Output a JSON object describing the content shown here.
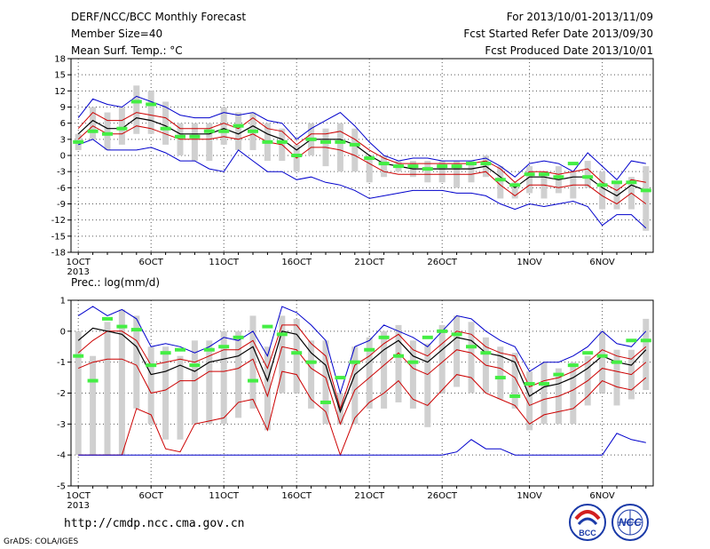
{
  "header": {
    "title": "DERF/NCC/BCC Monthly Forecast",
    "member_size": "Member Size=40",
    "variable": "Mean Surf. Temp.: °C",
    "forecast_period": "For 2013/10/01-2013/11/09",
    "fcst_started": "Fcst Started Refer Date 2013/09/30",
    "fcst_produced": "Fcst Produced Date 2013/10/01"
  },
  "footer": {
    "url": "http://cmdp.ncc.cma.gov.cn",
    "grads": "GrADS: COLA/IGES",
    "logo_bcc": "BCC",
    "logo_ncc": "NCC"
  },
  "colors": {
    "mean": "#000000",
    "spread": "#cc0000",
    "extremes": "#0000cc",
    "ensemble_range": "#d0d0d0",
    "median": "#44ee44",
    "grid": "#555555"
  },
  "chart_data": [
    {
      "type": "line",
      "title": "Mean Surf. Temp.: °C",
      "xlabel": "",
      "ylabel": "",
      "ylim": [
        -18,
        18
      ],
      "yticks": [
        -18,
        -15,
        -12,
        -9,
        -6,
        -3,
        0,
        3,
        6,
        9,
        12,
        15,
        18
      ],
      "xtick_labels": [
        "1OCT",
        "6OCT",
        "11OCT",
        "16OCT",
        "21OCT",
        "26OCT",
        "1NOV",
        "6NOV"
      ],
      "xtick_days": [
        1,
        6,
        11,
        16,
        21,
        26,
        32,
        37
      ],
      "year_label": "2013",
      "x_days": [
        1,
        2,
        3,
        4,
        5,
        6,
        7,
        8,
        9,
        10,
        11,
        12,
        13,
        14,
        15,
        16,
        17,
        18,
        19,
        20,
        21,
        22,
        23,
        24,
        25,
        26,
        27,
        28,
        29,
        30,
        31,
        32,
        33,
        34,
        35,
        36,
        37,
        38,
        39,
        40
      ],
      "grid": true,
      "series": [
        {
          "role": "max",
          "color": "#0000cc",
          "values": [
            7,
            10.5,
            9.5,
            9,
            11,
            10,
            9,
            7.5,
            7,
            7,
            8,
            7.5,
            8,
            6.5,
            6,
            3,
            5,
            6.5,
            8,
            5.5,
            2.5,
            0,
            -1,
            -0.5,
            -0.5,
            -1,
            -1,
            -1,
            -0.5,
            -2,
            -4,
            -1.5,
            -1,
            -1.5,
            -3,
            0.5,
            -2,
            -4.5,
            -1,
            -1.5
          ]
        },
        {
          "role": "upper",
          "color": "#cc0000",
          "values": [
            5,
            8,
            6.5,
            6.5,
            8,
            7.5,
            7,
            5,
            5,
            5,
            6,
            5,
            7,
            5,
            4.5,
            2,
            4,
            4,
            4.5,
            3,
            1,
            -0.5,
            -1.5,
            -1.5,
            -1.5,
            -1.5,
            -1.5,
            -1.5,
            -1,
            -2.5,
            -5,
            -3,
            -3,
            -3.5,
            -3,
            -2.5,
            -5,
            -6.5,
            -4.5,
            -5
          ]
        },
        {
          "role": "mean",
          "color": "#000000",
          "values": [
            4,
            6.5,
            5,
            5,
            7,
            6.5,
            5.5,
            4,
            4,
            4,
            5,
            4,
            5.5,
            4,
            3,
            1,
            3,
            3,
            3,
            2,
            0,
            -1.5,
            -2,
            -2.5,
            -2.5,
            -2.5,
            -2.5,
            -2.5,
            -2,
            -4,
            -6,
            -4,
            -4,
            -4.5,
            -4,
            -4,
            -6,
            -7.5,
            -5.5,
            -6.5
          ]
        },
        {
          "role": "lower",
          "color": "#cc0000",
          "values": [
            3,
            5.5,
            4,
            4,
            5.5,
            5,
            4,
            3,
            3,
            3,
            3.5,
            3,
            4,
            2.5,
            2,
            -0.5,
            1.5,
            1.5,
            1,
            0,
            -1.5,
            -3,
            -3.5,
            -3.5,
            -3.5,
            -3.5,
            -3.5,
            -3.5,
            -3,
            -5.5,
            -7.5,
            -5.5,
            -5.5,
            -6,
            -5.5,
            -5.5,
            -7.5,
            -9,
            -7,
            -9
          ]
        },
        {
          "role": "min",
          "color": "#0000cc",
          "values": [
            2,
            3,
            1,
            1,
            1,
            1.5,
            0.5,
            -1,
            -1,
            -2.5,
            -3,
            1,
            -1,
            -3,
            -3,
            -4.5,
            -4,
            -5,
            -5.5,
            -6.5,
            -8,
            -7.5,
            -7,
            -6.5,
            -6.5,
            -6.5,
            -7,
            -7,
            -7.5,
            -9,
            -10,
            -9,
            -9.5,
            -9,
            -8.5,
            -9.5,
            -13,
            -11,
            -11,
            -13.5
          ]
        }
      ],
      "ensemble_range": [
        [
          1,
          4
        ],
        [
          3,
          9
        ],
        [
          1,
          8
        ],
        [
          2,
          9
        ],
        [
          4,
          13
        ],
        [
          4,
          12
        ],
        [
          2,
          10
        ],
        [
          0,
          6
        ],
        [
          -1,
          6
        ],
        [
          -1,
          6
        ],
        [
          2,
          9
        ],
        [
          1,
          8
        ],
        [
          1,
          8
        ],
        [
          -1,
          6
        ],
        [
          -1,
          5
        ],
        [
          -3,
          2
        ],
        [
          0,
          6
        ],
        [
          -2,
          5
        ],
        [
          -3,
          6
        ],
        [
          -3,
          5
        ],
        [
          -5,
          0
        ],
        [
          -4,
          0
        ],
        [
          -3,
          -1
        ],
        [
          -4,
          -1
        ],
        [
          -5,
          -1
        ],
        [
          -5,
          -1
        ],
        [
          -6,
          -1
        ],
        [
          -5,
          -1
        ],
        [
          -4,
          0
        ],
        [
          -8,
          -2
        ],
        [
          -8,
          -5
        ],
        [
          -7,
          -2
        ],
        [
          -8,
          -3
        ],
        [
          -7,
          -2
        ],
        [
          -8,
          -3
        ],
        [
          -6,
          -1
        ],
        [
          -10,
          -3
        ],
        [
          -10,
          -5
        ],
        [
          -10,
          -4
        ],
        [
          -14,
          -2
        ]
      ],
      "median_marks": [
        2.5,
        4.5,
        4,
        5,
        10,
        9.5,
        5,
        3.5,
        3.5,
        4.5,
        4.5,
        5.5,
        4.5,
        2.5,
        2.5,
        0,
        3,
        2.5,
        2.5,
        2,
        -0.5,
        -1.5,
        -2,
        -2,
        -2.5,
        -2,
        -2,
        -1.5,
        -1.5,
        -4.5,
        -5.5,
        -3.5,
        -3.5,
        -4,
        -1.5,
        -4,
        -5.5,
        -5,
        -5,
        -6.5
      ]
    },
    {
      "type": "line",
      "title": "Prec.: log(mm/d)",
      "xlabel": "",
      "ylabel": "",
      "ylim": [
        -5,
        1
      ],
      "yticks": [
        -5,
        -4,
        -3,
        -2,
        -1,
        0,
        1
      ],
      "xtick_labels": [
        "1OCT",
        "6OCT",
        "11OCT",
        "16OCT",
        "21OCT",
        "26OCT",
        "1NOV",
        "6NOV"
      ],
      "xtick_days": [
        1,
        6,
        11,
        16,
        21,
        26,
        32,
        37
      ],
      "year_label": "2013",
      "x_days": [
        1,
        2,
        3,
        4,
        5,
        6,
        7,
        8,
        9,
        10,
        11,
        12,
        13,
        14,
        15,
        16,
        17,
        18,
        19,
        20,
        21,
        22,
        23,
        24,
        25,
        26,
        27,
        28,
        29,
        30,
        31,
        32,
        33,
        34,
        35,
        36,
        37,
        38,
        39,
        40
      ],
      "grid": true,
      "series": [
        {
          "role": "max",
          "color": "#0000cc",
          "values": [
            0.5,
            0.8,
            0.5,
            0.7,
            0.4,
            -0.5,
            -0.4,
            -0.5,
            -0.7,
            -0.5,
            -0.2,
            -0.3,
            0,
            -0.8,
            0.8,
            0.6,
            0.2,
            -0.3,
            -2,
            -0.5,
            -0.3,
            0.2,
            0,
            -0.2,
            -0.5,
            0,
            0.5,
            0.4,
            0,
            -0.3,
            -0.5,
            -1.3,
            -1,
            -1,
            -0.8,
            -0.5,
            0,
            -0.4,
            -0.5,
            0
          ]
        },
        {
          "role": "upper",
          "color": "#cc0000",
          "values": [
            -0.7,
            -0.3,
            0,
            0,
            -0.3,
            -1.1,
            -1,
            -0.9,
            -1,
            -0.8,
            -0.6,
            -0.6,
            -0.3,
            -1.2,
            0.2,
            0.2,
            -0.4,
            -0.8,
            -2.5,
            -1.1,
            -0.8,
            -0.4,
            -0.1,
            -0.6,
            -0.8,
            -0.4,
            0,
            -0.1,
            -0.5,
            -0.7,
            -0.8,
            -1.8,
            -1.6,
            -1.5,
            -1.3,
            -1,
            -0.6,
            -0.8,
            -0.9,
            -0.5
          ]
        },
        {
          "role": "mean",
          "color": "#000000",
          "values": [
            -0.3,
            0.1,
            0,
            -0.1,
            -0.5,
            -1.4,
            -1.3,
            -1.1,
            -1.3,
            -1,
            -0.9,
            -0.8,
            -0.5,
            -1.6,
            0,
            -0.1,
            -0.7,
            -1.1,
            -2.6,
            -1.4,
            -1,
            -0.6,
            -0.3,
            -0.8,
            -1,
            -0.6,
            -0.2,
            -0.3,
            -0.7,
            -0.8,
            -1,
            -2.1,
            -1.8,
            -1.7,
            -1.5,
            -1.2,
            -0.8,
            -1,
            -1.1,
            -0.6
          ]
        },
        {
          "role": "lower",
          "color": "#cc0000",
          "values": [
            -1.2,
            -1,
            -0.9,
            -0.9,
            -1.1,
            -2,
            -1.9,
            -1.6,
            -1.6,
            -1.3,
            -1.3,
            -1.2,
            -0.9,
            -2.1,
            -0.5,
            -0.6,
            -1.2,
            -1.5,
            -3,
            -1.9,
            -1.5,
            -1.1,
            -0.7,
            -1.2,
            -1.4,
            -1,
            -0.6,
            -0.7,
            -1.1,
            -1.2,
            -1.5,
            -2.4,
            -2.2,
            -2.1,
            -1.9,
            -1.6,
            -1.2,
            -1.3,
            -1.4,
            -1
          ]
        },
        {
          "role": "lower_outer",
          "color": "#cc0000",
          "values": [
            -4,
            -4,
            -4,
            -4,
            -2.5,
            -2.7,
            -3.8,
            -3.9,
            -3,
            -2.9,
            -2.8,
            -2.3,
            -2.2,
            -3.2,
            -1.3,
            -1.4,
            -2.2,
            -2.6,
            -4,
            -2.8,
            -2.3,
            -2,
            -1.6,
            -2.2,
            -2.4,
            -1.9,
            -1.4,
            -1.5,
            -2,
            -2.2,
            -2.4,
            -3,
            -2.7,
            -2.6,
            -2.5,
            -2.1,
            -1.6,
            -1.8,
            -1.9,
            -1.5
          ]
        },
        {
          "role": "min",
          "color": "#0000cc",
          "values": [
            -4,
            -4,
            -4,
            -4,
            -4,
            -4,
            -4,
            -4,
            -4,
            -4,
            -4,
            -4,
            -4,
            -4,
            -4,
            -4,
            -4,
            -4,
            -4,
            -4,
            -4,
            -4,
            -4,
            -4,
            -4,
            -4,
            -3.9,
            -3.5,
            -3.8,
            -3.8,
            -4,
            -4,
            -4,
            -4,
            -4,
            -4,
            -4,
            -3.3,
            -3.5,
            -3.6
          ]
        }
      ],
      "ensemble_range": [
        [
          -4,
          0
        ],
        [
          -4,
          -0.8
        ],
        [
          -4,
          0.3
        ],
        [
          -4,
          0.7
        ],
        [
          -2.5,
          0.5
        ],
        [
          -3,
          -0.5
        ],
        [
          -3.5,
          -0.5
        ],
        [
          -3.5,
          -0.8
        ],
        [
          -3,
          -0.3
        ],
        [
          -3,
          -0.3
        ],
        [
          -3,
          0
        ],
        [
          -2.8,
          0
        ],
        [
          -2.5,
          0.5
        ],
        [
          -3.2,
          -0.5
        ],
        [
          -2,
          0.5
        ],
        [
          -2,
          0.4
        ],
        [
          -2.5,
          -0.3
        ],
        [
          -3,
          -0.3
        ],
        [
          -3,
          -2
        ],
        [
          -3,
          -0.5
        ],
        [
          -2.5,
          -0.2
        ],
        [
          -2.5,
          0
        ],
        [
          -2.3,
          0.2
        ],
        [
          -2.5,
          -0.3
        ],
        [
          -3.1,
          -0.4
        ],
        [
          -2,
          0.2
        ],
        [
          -1.8,
          0.5
        ],
        [
          -2,
          0.3
        ],
        [
          -2,
          -0.2
        ],
        [
          -2.2,
          -0.5
        ],
        [
          -2.5,
          -0.7
        ],
        [
          -3.2,
          -1.3
        ],
        [
          -3,
          -1
        ],
        [
          -3,
          -1.2
        ],
        [
          -3,
          -1
        ],
        [
          -2.4,
          -0.8
        ],
        [
          -2,
          0
        ],
        [
          -2.4,
          -0.6
        ],
        [
          -2.2,
          -0.6
        ],
        [
          -1.9,
          0.4
        ]
      ],
      "median_marks": [
        -0.8,
        -1.6,
        0.4,
        0.15,
        0.05,
        -1.1,
        -0.7,
        -0.6,
        -1.1,
        -0.6,
        -0.5,
        -0.2,
        -1.6,
        0.15,
        -0.1,
        -0.7,
        -1,
        -2.3,
        -1.5,
        -1,
        -0.6,
        -0.2,
        -0.8,
        -1,
        -0.2,
        0,
        -0.1,
        -0.5,
        -0.7,
        -1.5,
        -2.1,
        -1.7,
        -1.7,
        -1.4,
        -1.1,
        -0.7,
        -0.8,
        -1,
        -0.3,
        -0.3
      ]
    }
  ]
}
